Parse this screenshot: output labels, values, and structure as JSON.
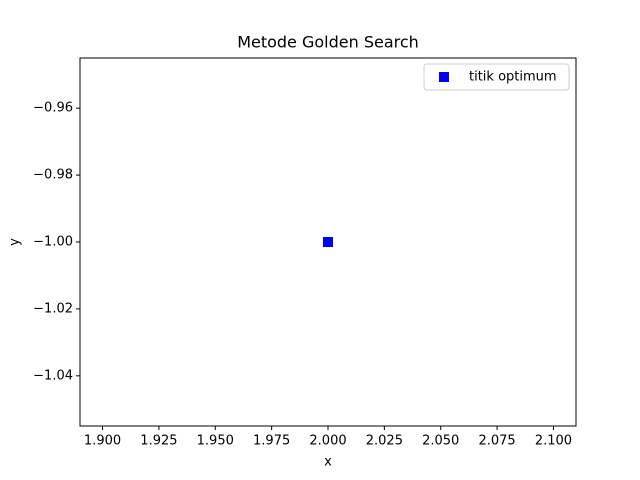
{
  "chart_data": {
    "type": "scatter",
    "title": "Metode Golden Search",
    "x_label": "x",
    "y_label": "y",
    "series": [
      {
        "name": "titik optimum",
        "color": "#0000ff",
        "marker": "square",
        "x": [
          2.0
        ],
        "values": [
          -1.0
        ]
      }
    ],
    "xlim": [
      1.89,
      2.11
    ],
    "xticks": [
      {
        "value": 1.9,
        "label": "1.900"
      },
      {
        "value": 1.925,
        "label": "1.925"
      },
      {
        "value": 1.95,
        "label": "1.950"
      },
      {
        "value": 1.975,
        "label": "1.975"
      },
      {
        "value": 2.0,
        "label": "2.000"
      },
      {
        "value": 2.025,
        "label": "2.025"
      },
      {
        "value": 2.05,
        "label": "2.050"
      },
      {
        "value": 2.075,
        "label": "2.075"
      },
      {
        "value": 2.1,
        "label": "2.100"
      }
    ],
    "ylim": [
      -1.055,
      -0.945
    ],
    "yticks": [
      {
        "value": -1.04,
        "label": "−1.04"
      },
      {
        "value": -1.02,
        "label": "−1.02"
      },
      {
        "value": -1.0,
        "label": "−1.00"
      },
      {
        "value": -0.98,
        "label": "−0.98"
      },
      {
        "value": -0.96,
        "label": "−0.96"
      }
    ],
    "legend": "upper right",
    "grid": false
  }
}
